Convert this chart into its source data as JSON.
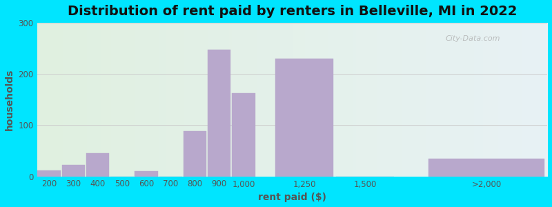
{
  "title": "Distribution of rent paid by renters in Belleville, MI in 2022",
  "xlabel": "rent paid ($)",
  "ylabel": "households",
  "bar_lefts": [
    150,
    250,
    350,
    450,
    550,
    650,
    750,
    850,
    950,
    1125,
    1375,
    1750
  ],
  "bar_widths": [
    100,
    100,
    100,
    100,
    100,
    100,
    100,
    100,
    100,
    250,
    250,
    500
  ],
  "bar_values": [
    12,
    22,
    45,
    0,
    10,
    0,
    88,
    248,
    163,
    230,
    0,
    35
  ],
  "bar_color": "#b8a8cc",
  "bar_edge_color": "#b8a8cc",
  "xtick_positions": [
    200,
    300,
    400,
    500,
    600,
    700,
    800,
    900,
    1000,
    1250,
    1500,
    2000
  ],
  "xtick_labels": [
    "200",
    "300",
    "400",
    "500",
    "600",
    "700",
    "800",
    "900",
    "1,000",
    "1,250",
    "1,500",
    ">2,000"
  ],
  "xlim": [
    150,
    2250
  ],
  "ylim": [
    0,
    300
  ],
  "yticks": [
    0,
    100,
    200,
    300
  ],
  "title_fontsize": 14,
  "axis_label_fontsize": 10,
  "tick_fontsize": 8.5,
  "bg_color_left": "#e0f0e0",
  "bg_color_right": "#e8f2f5",
  "outer_bg": "#00e5ff",
  "watermark_text": "City-Data.com",
  "grid_color": "#cccccc"
}
